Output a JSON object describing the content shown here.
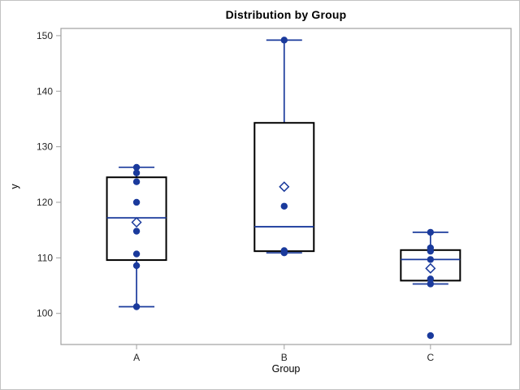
{
  "chart_data": {
    "type": "boxplot",
    "title": "Distribution by Group",
    "xlabel": "Group",
    "ylabel": "y",
    "categories": [
      "A",
      "B",
      "C"
    ],
    "yticks": [
      100,
      110,
      120,
      130,
      140,
      150
    ],
    "ylim": [
      94.4,
      151.3
    ],
    "grid": false,
    "legend": "none",
    "groups": [
      {
        "label": "A",
        "q1": 109.6,
        "median": 117.2,
        "q3": 124.5,
        "mean": 116.4,
        "whisker_low": 101.2,
        "whisker_high": 126.3,
        "points": [
          126.3,
          125.3,
          123.7,
          120.0,
          114.8,
          110.7,
          108.6,
          101.2
        ],
        "outliers": []
      },
      {
        "label": "B",
        "q1": 111.2,
        "median": 115.6,
        "q3": 134.3,
        "mean": 122.8,
        "whisker_low": 110.9,
        "whisker_high": 149.2,
        "points": [
          149.2,
          119.3,
          111.3,
          110.9
        ],
        "outliers": []
      },
      {
        "label": "C",
        "q1": 105.9,
        "median": 109.7,
        "q3": 111.4,
        "mean": 108.1,
        "whisker_low": 105.3,
        "whisker_high": 114.6,
        "points": [
          114.6,
          111.8,
          111.2,
          109.7,
          106.2,
          105.3,
          96.0
        ],
        "outliers": [
          96.0
        ]
      }
    ],
    "colors": {
      "marker_blue": "#1a3a9c",
      "box_outline": "#000000",
      "frame_gray": "#a0a0a0",
      "tick_text": "#262626",
      "background": "#ffffff"
    }
  }
}
